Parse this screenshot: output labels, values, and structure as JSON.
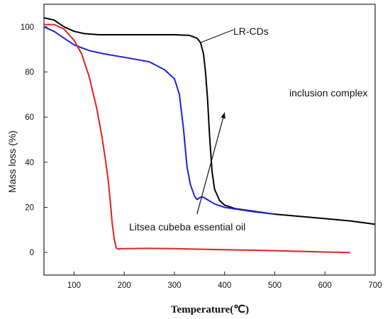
{
  "chart_data": {
    "type": "line",
    "title": "",
    "xlabel": "Temperature(℃)",
    "ylabel": "Mass loss (%)",
    "xlim": [
      40,
      700
    ],
    "ylim": [
      -10,
      110
    ],
    "x_ticks": [
      100,
      200,
      300,
      400,
      500,
      600,
      700
    ],
    "y_ticks": [
      0,
      20,
      40,
      60,
      80,
      100
    ],
    "grid": false,
    "legend": "none",
    "series": [
      {
        "name": "LR-CDs",
        "color": "#000000",
        "x": [
          40,
          60,
          80,
          100,
          120,
          150,
          200,
          250,
          300,
          330,
          345,
          352,
          358,
          362,
          366,
          370,
          375,
          380,
          390,
          400,
          420,
          450,
          500,
          550,
          600,
          650,
          700
        ],
        "y": [
          104,
          103,
          100,
          98,
          97,
          96.5,
          96.5,
          96.5,
          96.5,
          96.2,
          95,
          93,
          88,
          80,
          68,
          52,
          36,
          28,
          23,
          21,
          19.5,
          18.5,
          17,
          16,
          15,
          14,
          12.5
        ]
      },
      {
        "name": "inclusion complex",
        "color": "#1f1fdc",
        "x": [
          40,
          60,
          80,
          100,
          130,
          160,
          200,
          250,
          280,
          300,
          310,
          318,
          325,
          332,
          340,
          345,
          352,
          358,
          365,
          380,
          400,
          430,
          460,
          500
        ],
        "y": [
          100,
          98,
          95,
          92,
          89.5,
          88,
          86.5,
          84.5,
          81,
          77,
          70,
          55,
          38,
          30,
          25,
          23.5,
          24.5,
          24.5,
          23.5,
          21.5,
          20,
          19,
          18,
          17
        ]
      },
      {
        "name": "Litsea cubeba essential oil",
        "color": "#e02020",
        "x": [
          40,
          60,
          80,
          100,
          115,
          130,
          145,
          155,
          162,
          168,
          172,
          176,
          180,
          184,
          188,
          195,
          250,
          300,
          400,
          500,
          600,
          650
        ],
        "y": [
          101,
          101,
          99,
          94,
          88,
          78,
          64,
          52,
          42,
          32,
          23,
          13,
          6,
          2,
          1.5,
          1.7,
          1.8,
          1.7,
          1.2,
          0.8,
          0.2,
          0
        ]
      }
    ],
    "annotations": [
      {
        "text": "LR-CDs",
        "x": 360,
        "y": 97,
        "arrow": false
      },
      {
        "text": "inclusion complex",
        "x": 440,
        "y": 70,
        "arrow_from": [
          345,
          17
        ],
        "arrow_to": [
          400,
          62
        ]
      },
      {
        "text": "Litsea cubeba essential oil",
        "x": 205,
        "y": 11
      }
    ]
  }
}
